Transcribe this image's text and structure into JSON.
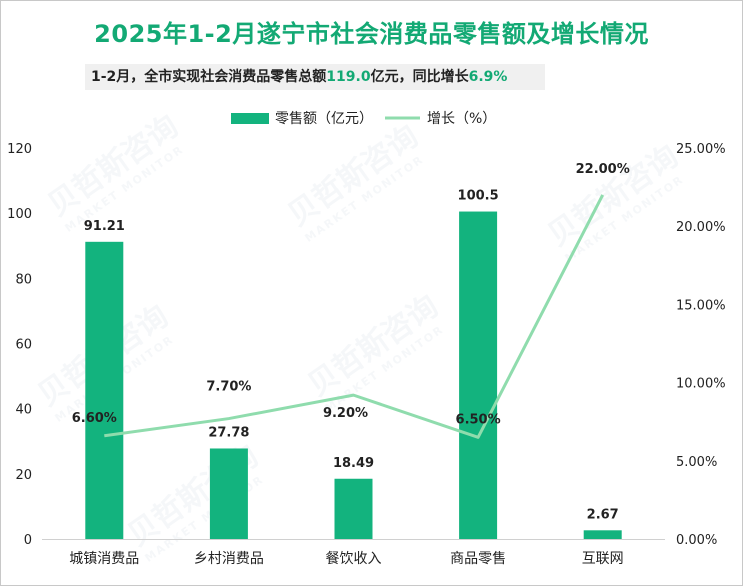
{
  "title": "2025年1-2月遂宁市社会消费品零售额及增长情况",
  "summary": {
    "prefix": "1-2月，全市实现社会消费品零售总额",
    "amount": "119.0",
    "mid": "亿元，同比增长",
    "growth": "6.9%"
  },
  "watermark": {
    "brand": "贝哲斯咨询",
    "sub": "MARKET MONITOR"
  },
  "colors": {
    "bar": "#13b37e",
    "line": "#8fdcad",
    "title": "#13a974",
    "text": "#222222"
  },
  "chart_data": {
    "type": "bar",
    "categories": [
      "城镇消费品",
      "乡村消费品",
      "餐饮收入",
      "商品零售",
      "互联网"
    ],
    "series": [
      {
        "name": "零售额（亿元）",
        "type": "bar",
        "axis": "left",
        "values": [
          91.21,
          27.78,
          18.49,
          100.5,
          2.67
        ],
        "labels": [
          "91.21",
          "27.78",
          "18.49",
          "100.5",
          "2.67"
        ]
      },
      {
        "name": "增长（%）",
        "type": "line",
        "axis": "right",
        "values": [
          6.6,
          7.7,
          9.2,
          6.5,
          22.0
        ],
        "labels": [
          "6.60%",
          "7.70%",
          "9.20%",
          "6.50%",
          "22.00%"
        ]
      }
    ],
    "y_left": {
      "min": 0,
      "max": 120,
      "ticks": [
        "0",
        "20",
        "40",
        "60",
        "80",
        "100",
        "120"
      ]
    },
    "y_right": {
      "min": 0,
      "max": 25,
      "ticks": [
        "0.00%",
        "5.00%",
        "10.00%",
        "15.00%",
        "20.00%",
        "25.00%"
      ]
    },
    "legend_position": "top-center",
    "grid": false
  }
}
